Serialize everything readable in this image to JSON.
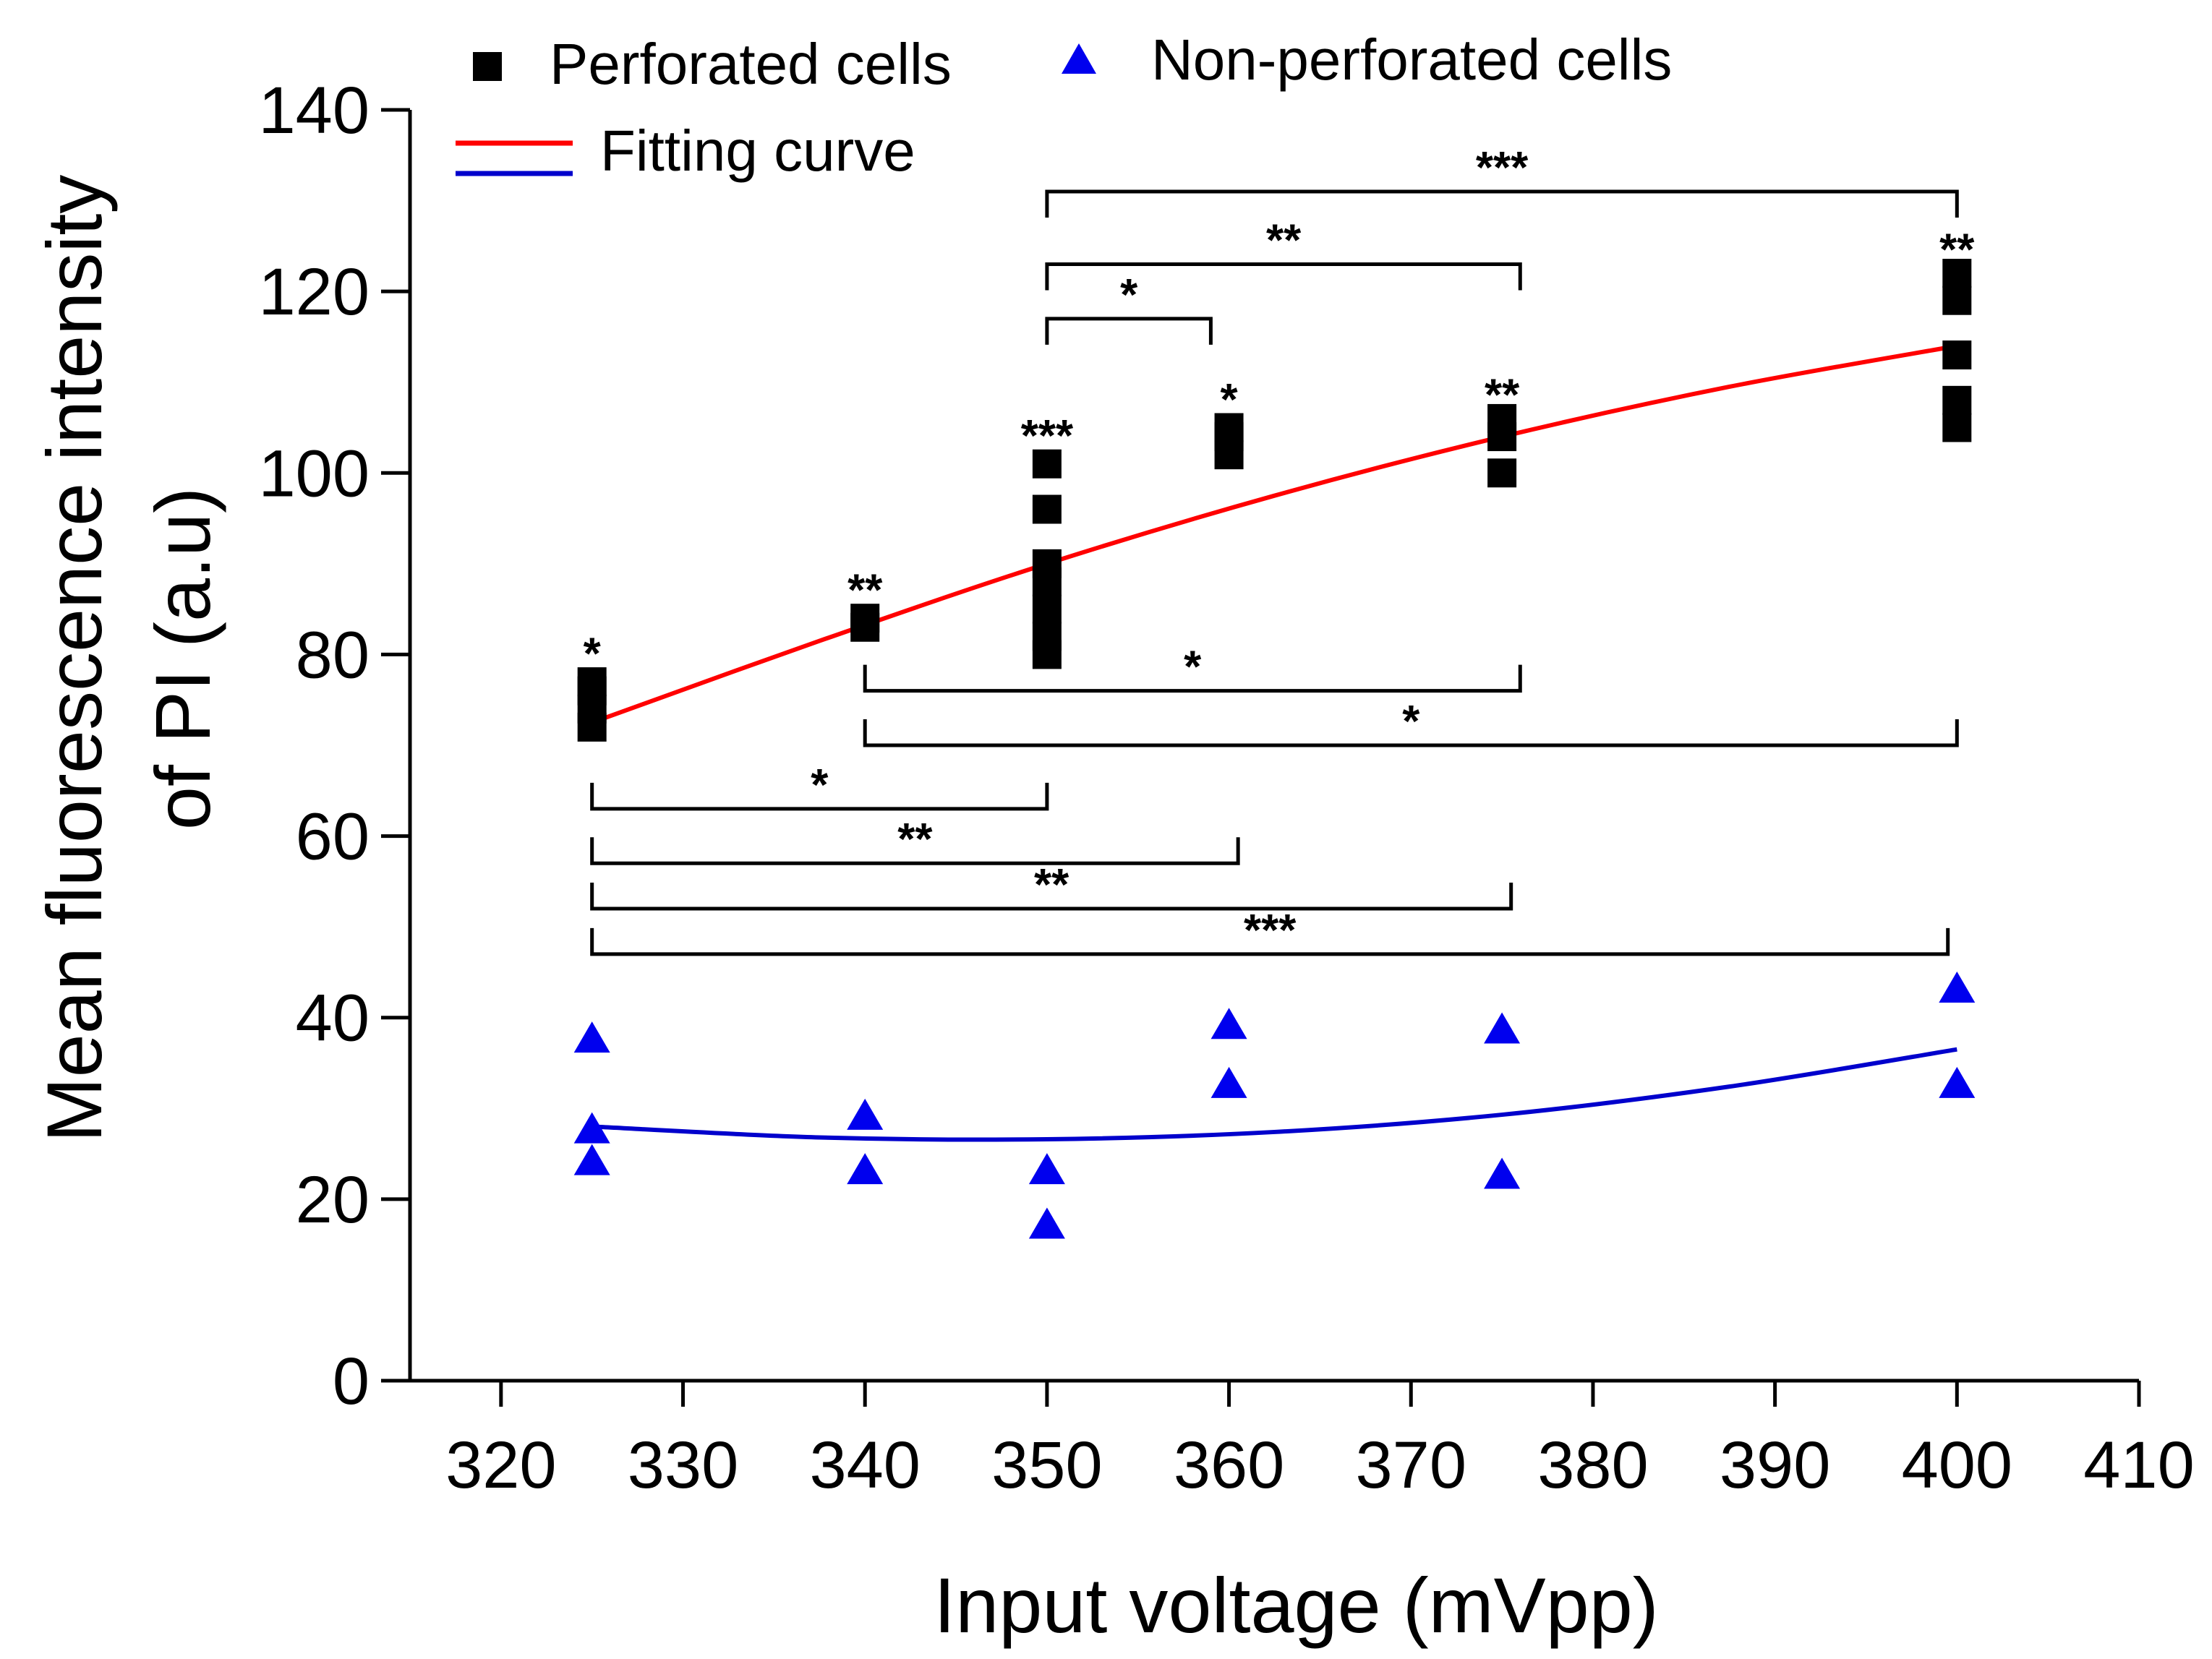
{
  "chart_data": {
    "type": "scatter",
    "xlabel": "Input voltage (mVpp)",
    "ylabel_lines": [
      "Mean fluorescence intensity",
      "of PI (a.u)"
    ],
    "xlim": [
      315,
      410
    ],
    "ylim": [
      0,
      140
    ],
    "x_ticks": [
      320,
      330,
      340,
      350,
      360,
      370,
      380,
      390,
      400,
      410
    ],
    "y_ticks": [
      0,
      20,
      40,
      60,
      80,
      100,
      120,
      140
    ],
    "grid": false,
    "legend_position": "top-left",
    "legend": {
      "perforated": "Perforated cells",
      "non_perforated": "Non-perforated cells",
      "fitting": "Fitting curve"
    },
    "colors": {
      "perforated": "#000000",
      "non_perforated": "#0000ee",
      "fit_perforated": "#ff0000",
      "fit_non_perforated": "#0000cc"
    },
    "series": [
      {
        "name": "Perforated cells",
        "marker": "square",
        "points": [
          [
            325,
            72
          ],
          [
            325,
            74
          ],
          [
            325,
            76
          ],
          [
            325,
            77
          ],
          [
            340,
            83
          ],
          [
            340,
            84
          ],
          [
            350,
            80
          ],
          [
            350,
            82
          ],
          [
            350,
            85
          ],
          [
            350,
            88
          ],
          [
            350,
            90
          ],
          [
            350,
            96
          ],
          [
            350,
            101
          ],
          [
            360,
            102
          ],
          [
            360,
            104
          ],
          [
            360,
            105
          ],
          [
            375,
            100
          ],
          [
            375,
            104
          ],
          [
            375,
            106
          ],
          [
            400,
            105
          ],
          [
            400,
            108
          ],
          [
            400,
            113
          ],
          [
            400,
            119
          ],
          [
            400,
            122
          ]
        ]
      },
      {
        "name": "Non-perforated cells",
        "marker": "triangle",
        "points": [
          [
            325,
            37.5
          ],
          [
            325,
            27.5
          ],
          [
            325,
            24
          ],
          [
            340,
            29
          ],
          [
            340,
            23
          ],
          [
            350,
            23
          ],
          [
            350,
            17
          ],
          [
            360,
            39
          ],
          [
            360,
            32.5
          ],
          [
            375,
            38.5
          ],
          [
            375,
            22.5
          ],
          [
            400,
            43
          ],
          [
            400,
            32.5
          ]
        ]
      }
    ],
    "fits": [
      {
        "name": "Fitting curve (perforated)",
        "points": [
          [
            325,
            72.5
          ],
          [
            337.5,
            81.5
          ],
          [
            350,
            90
          ],
          [
            362.5,
            97.5
          ],
          [
            375,
            104
          ],
          [
            387.5,
            109.5
          ],
          [
            400,
            114
          ]
        ]
      },
      {
        "name": "Fitting curve (non-perforated)",
        "points": [
          [
            325,
            28
          ],
          [
            337.5,
            26.8
          ],
          [
            350,
            26.6
          ],
          [
            362.5,
            27.4
          ],
          [
            375,
            29.3
          ],
          [
            387.5,
            32.4
          ],
          [
            400,
            36.5
          ]
        ]
      }
    ],
    "point_significance": [
      {
        "x": 325,
        "y": 80,
        "label": "*"
      },
      {
        "x": 340,
        "y": 87,
        "label": "**"
      },
      {
        "x": 350,
        "y": 104,
        "label": "***"
      },
      {
        "x": 360,
        "y": 108,
        "label": "*"
      },
      {
        "x": 375,
        "y": 108.5,
        "label": "**"
      },
      {
        "x": 400,
        "y": 124.5,
        "label": "**"
      }
    ],
    "brackets": [
      {
        "x1": 350,
        "x2": 400,
        "y": 131,
        "dir": "top",
        "label": "***"
      },
      {
        "x1": 350,
        "x2": 376,
        "y": 123,
        "dir": "top",
        "label": "**"
      },
      {
        "x1": 350,
        "x2": 359,
        "y": 117,
        "dir": "top",
        "label": "*"
      },
      {
        "x1": 340,
        "x2": 376,
        "y": 76,
        "dir": "bottom",
        "label": "*"
      },
      {
        "x1": 340,
        "x2": 400,
        "y": 70,
        "dir": "bottom",
        "label": "*"
      },
      {
        "x1": 325,
        "x2": 350,
        "y": 63,
        "dir": "bottom",
        "label": "*"
      },
      {
        "x1": 325,
        "x2": 360.5,
        "y": 57,
        "dir": "bottom",
        "label": "**"
      },
      {
        "x1": 325,
        "x2": 375.5,
        "y": 52,
        "dir": "bottom",
        "label": "**"
      },
      {
        "x1": 325,
        "x2": 399.5,
        "y": 47,
        "dir": "bottom",
        "label": "***"
      }
    ]
  }
}
